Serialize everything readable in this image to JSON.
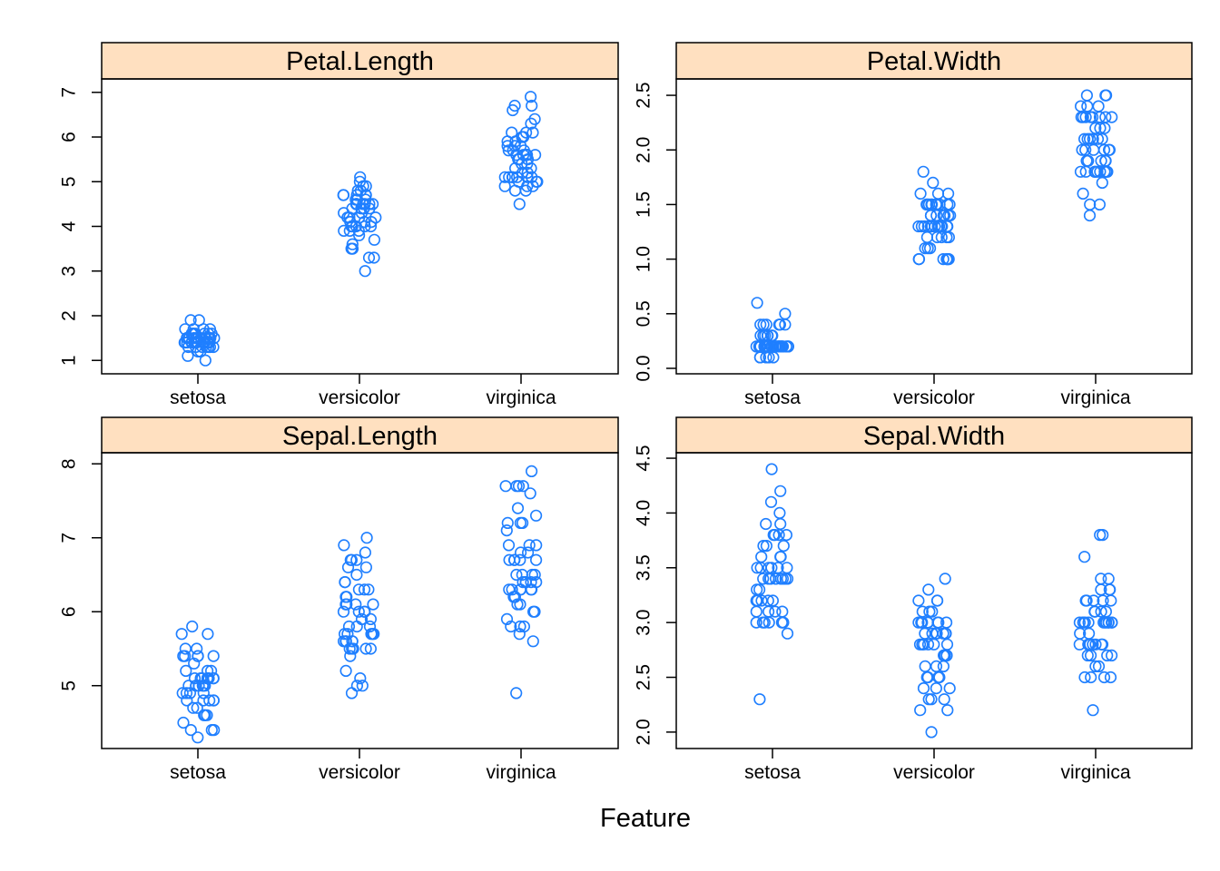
{
  "xlabel": "Feature",
  "marker_color": "#1f7fff",
  "strip_color": "#ffe0c0",
  "chart_data": [
    {
      "type": "scatter",
      "title": "Petal.Length",
      "categories": [
        "setosa",
        "versicolor",
        "virginica"
      ],
      "ylim": [
        0.7,
        7.3
      ],
      "yticks": [
        "1",
        "2",
        "3",
        "4",
        "5",
        "6",
        "7"
      ],
      "series": [
        {
          "category": "setosa",
          "values": [
            1.4,
            1.4,
            1.3,
            1.5,
            1.4,
            1.7,
            1.4,
            1.5,
            1.4,
            1.5,
            1.5,
            1.6,
            1.4,
            1.1,
            1.2,
            1.5,
            1.3,
            1.4,
            1.7,
            1.5,
            1.7,
            1.5,
            1.0,
            1.7,
            1.9,
            1.6,
            1.6,
            1.5,
            1.4,
            1.6,
            1.6,
            1.5,
            1.5,
            1.4,
            1.5,
            1.2,
            1.3,
            1.4,
            1.3,
            1.5,
            1.3,
            1.3,
            1.3,
            1.6,
            1.9,
            1.4,
            1.6,
            1.4,
            1.5,
            1.4
          ]
        },
        {
          "category": "versicolor",
          "values": [
            4.7,
            4.5,
            4.9,
            4.0,
            4.6,
            4.5,
            4.7,
            3.3,
            4.6,
            3.9,
            3.5,
            4.2,
            4.0,
            4.7,
            3.6,
            4.4,
            4.5,
            4.1,
            4.5,
            3.9,
            4.8,
            4.0,
            4.9,
            4.7,
            4.3,
            4.4,
            4.8,
            5.0,
            4.5,
            3.5,
            3.8,
            3.7,
            3.9,
            5.1,
            4.5,
            4.5,
            4.7,
            4.4,
            4.1,
            4.0,
            4.4,
            4.6,
            4.0,
            3.3,
            4.2,
            4.2,
            4.2,
            4.3,
            3.0,
            4.1
          ]
        },
        {
          "category": "virginica",
          "values": [
            6.0,
            5.1,
            5.9,
            5.6,
            5.8,
            6.6,
            4.5,
            6.3,
            5.8,
            6.1,
            5.1,
            5.3,
            5.5,
            5.0,
            5.1,
            5.3,
            5.5,
            6.7,
            6.9,
            5.0,
            5.7,
            4.9,
            6.7,
            4.9,
            5.7,
            6.0,
            4.8,
            4.9,
            5.6,
            5.8,
            6.1,
            6.4,
            5.6,
            5.1,
            5.6,
            6.1,
            5.6,
            5.5,
            4.8,
            5.4,
            5.6,
            5.1,
            5.1,
            5.9,
            5.7,
            5.2,
            5.0,
            5.2,
            5.4,
            5.1
          ]
        }
      ]
    },
    {
      "type": "scatter",
      "title": "Petal.Width",
      "categories": [
        "setosa",
        "versicolor",
        "virginica"
      ],
      "ylim": [
        -0.05,
        2.65
      ],
      "yticks": [
        "0.0",
        "0.5",
        "1.0",
        "1.5",
        "2.0",
        "2.5"
      ],
      "series": [
        {
          "category": "setosa",
          "values": [
            0.2,
            0.2,
            0.2,
            0.2,
            0.2,
            0.4,
            0.3,
            0.2,
            0.2,
            0.1,
            0.2,
            0.2,
            0.1,
            0.1,
            0.2,
            0.4,
            0.4,
            0.3,
            0.3,
            0.3,
            0.2,
            0.4,
            0.2,
            0.5,
            0.2,
            0.2,
            0.4,
            0.2,
            0.2,
            0.2,
            0.2,
            0.4,
            0.1,
            0.2,
            0.2,
            0.2,
            0.2,
            0.1,
            0.2,
            0.2,
            0.3,
            0.3,
            0.2,
            0.6,
            0.4,
            0.3,
            0.2,
            0.2,
            0.2,
            0.2
          ]
        },
        {
          "category": "versicolor",
          "values": [
            1.4,
            1.5,
            1.5,
            1.3,
            1.5,
            1.3,
            1.6,
            1.0,
            1.3,
            1.4,
            1.0,
            1.5,
            1.0,
            1.4,
            1.3,
            1.4,
            1.5,
            1.0,
            1.5,
            1.1,
            1.8,
            1.3,
            1.5,
            1.2,
            1.3,
            1.4,
            1.4,
            1.7,
            1.5,
            1.0,
            1.1,
            1.0,
            1.2,
            1.6,
            1.5,
            1.6,
            1.5,
            1.3,
            1.3,
            1.3,
            1.2,
            1.4,
            1.2,
            1.0,
            1.3,
            1.2,
            1.3,
            1.3,
            1.1,
            1.3
          ]
        },
        {
          "category": "virginica",
          "values": [
            2.5,
            1.9,
            2.1,
            1.8,
            2.2,
            2.1,
            1.7,
            1.8,
            1.8,
            2.5,
            2.0,
            1.9,
            2.1,
            2.0,
            2.4,
            2.3,
            1.8,
            2.2,
            2.3,
            1.5,
            2.3,
            2.0,
            2.0,
            1.8,
            2.1,
            1.8,
            1.8,
            1.8,
            2.1,
            1.6,
            1.9,
            2.0,
            2.2,
            1.5,
            1.4,
            2.3,
            2.4,
            1.8,
            1.8,
            2.1,
            2.4,
            2.3,
            1.9,
            2.3,
            2.5,
            2.3,
            1.9,
            2.0,
            2.3,
            1.8
          ]
        }
      ]
    },
    {
      "type": "scatter",
      "title": "Sepal.Length",
      "categories": [
        "setosa",
        "versicolor",
        "virginica"
      ],
      "ylim": [
        4.15,
        8.15
      ],
      "yticks": [
        "5",
        "6",
        "7",
        "8"
      ],
      "series": [
        {
          "category": "setosa",
          "values": [
            5.1,
            4.9,
            4.7,
            4.6,
            5.0,
            5.4,
            4.6,
            5.0,
            4.4,
            4.9,
            5.4,
            4.8,
            4.8,
            4.3,
            5.8,
            5.7,
            5.4,
            5.1,
            5.7,
            5.1,
            5.4,
            5.1,
            4.6,
            5.1,
            4.8,
            5.0,
            5.0,
            5.2,
            5.2,
            4.7,
            4.8,
            5.4,
            5.2,
            5.5,
            4.9,
            5.0,
            5.5,
            4.9,
            4.4,
            5.1,
            5.0,
            4.5,
            4.4,
            5.0,
            5.1,
            4.8,
            5.1,
            4.6,
            5.3,
            5.0
          ]
        },
        {
          "category": "versicolor",
          "values": [
            7.0,
            6.4,
            6.9,
            5.5,
            6.5,
            5.7,
            6.3,
            4.9,
            6.6,
            5.2,
            5.0,
            5.9,
            6.0,
            6.1,
            5.6,
            6.7,
            5.6,
            5.8,
            6.2,
            5.6,
            5.9,
            6.1,
            6.3,
            6.1,
            6.4,
            6.6,
            6.8,
            6.7,
            6.0,
            5.7,
            5.5,
            5.5,
            5.8,
            6.0,
            5.4,
            6.0,
            6.7,
            6.3,
            5.6,
            5.5,
            5.5,
            6.1,
            5.8,
            5.0,
            5.6,
            5.7,
            5.7,
            6.2,
            5.1,
            5.7
          ]
        },
        {
          "category": "virginica",
          "values": [
            6.3,
            5.8,
            7.1,
            6.3,
            6.5,
            7.6,
            4.9,
            7.3,
            6.7,
            7.2,
            6.5,
            6.4,
            6.8,
            5.7,
            5.8,
            6.4,
            6.5,
            7.7,
            7.7,
            6.0,
            6.9,
            5.6,
            7.7,
            6.3,
            6.7,
            7.2,
            6.2,
            6.1,
            6.4,
            7.2,
            7.4,
            7.9,
            6.4,
            6.3,
            6.1,
            7.7,
            6.3,
            6.4,
            6.0,
            6.9,
            6.7,
            6.9,
            5.8,
            6.8,
            6.7,
            6.7,
            6.3,
            6.5,
            6.2,
            5.9
          ]
        }
      ]
    },
    {
      "type": "scatter",
      "title": "Sepal.Width",
      "categories": [
        "setosa",
        "versicolor",
        "virginica"
      ],
      "ylim": [
        1.85,
        4.55
      ],
      "yticks": [
        "2.0",
        "2.5",
        "3.0",
        "3.5",
        "4.0",
        "4.5"
      ],
      "series": [
        {
          "category": "setosa",
          "values": [
            3.5,
            3.0,
            3.2,
            3.1,
            3.6,
            3.9,
            3.4,
            3.4,
            2.9,
            3.1,
            3.7,
            3.4,
            3.0,
            3.0,
            4.0,
            4.4,
            3.9,
            3.5,
            3.8,
            3.8,
            3.4,
            3.7,
            3.6,
            3.3,
            3.4,
            3.0,
            3.4,
            3.5,
            3.4,
            3.2,
            3.1,
            3.4,
            4.1,
            4.2,
            3.1,
            3.2,
            3.5,
            3.6,
            3.0,
            3.4,
            3.5,
            2.3,
            3.2,
            3.5,
            3.8,
            3.0,
            3.8,
            3.2,
            3.7,
            3.3
          ]
        },
        {
          "category": "versicolor",
          "values": [
            3.2,
            3.2,
            3.1,
            2.3,
            2.8,
            2.8,
            3.3,
            2.4,
            2.9,
            2.7,
            2.0,
            3.0,
            2.2,
            2.9,
            2.9,
            3.1,
            3.0,
            2.7,
            2.2,
            2.5,
            3.2,
            2.8,
            2.5,
            2.8,
            2.9,
            3.0,
            2.8,
            3.0,
            2.9,
            2.6,
            2.4,
            2.4,
            2.7,
            2.7,
            3.0,
            3.4,
            3.1,
            2.3,
            3.0,
            2.5,
            2.6,
            3.0,
            2.6,
            2.3,
            2.7,
            3.0,
            2.9,
            2.9,
            2.5,
            2.8
          ]
        },
        {
          "category": "virginica",
          "values": [
            3.3,
            2.7,
            3.0,
            2.9,
            3.0,
            3.0,
            2.5,
            2.9,
            2.5,
            3.6,
            3.2,
            2.7,
            3.0,
            2.5,
            2.8,
            3.2,
            3.0,
            3.8,
            2.6,
            2.2,
            3.2,
            2.8,
            2.8,
            2.7,
            3.3,
            3.2,
            2.8,
            3.0,
            2.8,
            3.0,
            2.8,
            3.8,
            2.8,
            2.8,
            2.6,
            3.0,
            3.4,
            3.1,
            3.0,
            3.1,
            3.1,
            3.1,
            2.7,
            3.2,
            3.3,
            3.0,
            2.5,
            3.0,
            3.4,
            3.0
          ]
        }
      ]
    }
  ]
}
